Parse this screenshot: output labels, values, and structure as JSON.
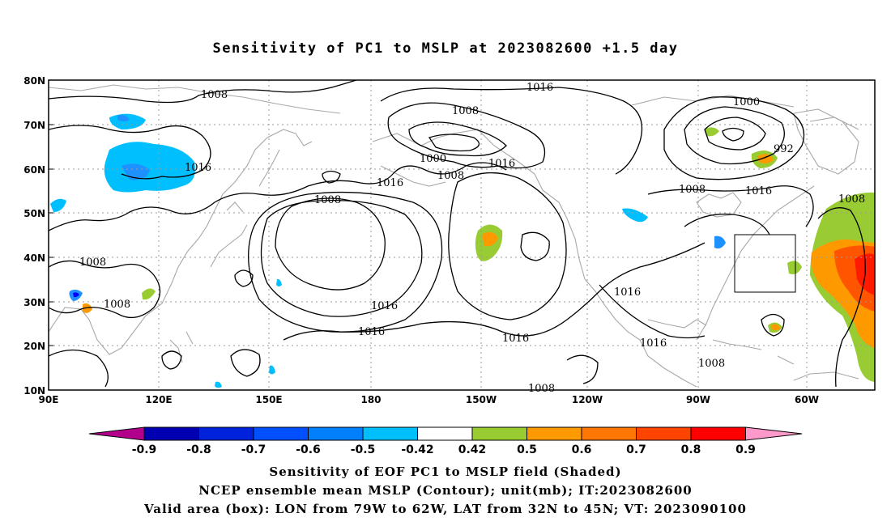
{
  "title": "Sensitivity of PC1 to MSLP at 2023082600 +1.5 day",
  "map": {
    "lat_labels": [
      "80N",
      "70N",
      "60N",
      "50N",
      "40N",
      "30N",
      "20N",
      "10N"
    ],
    "lon_labels": [
      "90E",
      "120E",
      "150E",
      "180",
      "150W",
      "120W",
      "90W",
      "60W"
    ],
    "box": {
      "lon": [
        "79W",
        "62W"
      ],
      "lat": [
        "32N",
        "45N"
      ]
    },
    "contour_labels": [
      {
        "text": "1008"
      },
      {
        "text": "1016"
      },
      {
        "text": "1016"
      },
      {
        "text": "1008"
      },
      {
        "text": "1008"
      },
      {
        "text": "1000"
      },
      {
        "text": "1008"
      },
      {
        "text": "1016"
      },
      {
        "text": "1016"
      },
      {
        "text": "1008"
      },
      {
        "text": "1000"
      },
      {
        "text": "992"
      },
      {
        "text": "1008"
      },
      {
        "text": "1016"
      },
      {
        "text": "1008"
      },
      {
        "text": "1008"
      },
      {
        "text": "1016"
      },
      {
        "text": "1016"
      },
      {
        "text": "1016"
      },
      {
        "text": "1016"
      },
      {
        "text": "1016"
      },
      {
        "text": "1008"
      },
      {
        "text": "1008"
      }
    ],
    "colors": {
      "contour": "#000000",
      "coast": "#a8a8a8",
      "grid": "#9a9a9a",
      "neg_shade": "#00bfff",
      "neg_mid": "#1e90ff",
      "neg_deep": "#0000ff",
      "pos_green": "#99cc33",
      "pos_orange": "#ff9900",
      "pos_deep": "#ff5500",
      "pos_red": "#ff1a00"
    }
  },
  "colorbar": {
    "labels": [
      "-0.9",
      "-0.8",
      "-0.7",
      "-0.6",
      "-0.5",
      "-0.42",
      "0.42",
      "0.5",
      "0.6",
      "0.7",
      "0.8",
      "0.9"
    ],
    "colors": [
      "#0000b3",
      "#0022dd",
      "#0050ff",
      "#0080ff",
      "#00bfff",
      "#ffffff",
      "#99cc33",
      "#ff9900",
      "#ff7700",
      "#ff4400",
      "#ff0000"
    ],
    "low_extend": "#b3008c",
    "high_extend": "#ff99cc"
  },
  "footer": {
    "line1": "Sensitivity of EOF PC1 to MSLP field (Shaded)",
    "line2": "NCEP ensemble mean MSLP (Contour); unit(mb); IT:2023082600",
    "line3": "Valid area (box): LON from 79W to 62W, LAT from 32N to 45N; VT: 2023090100"
  }
}
